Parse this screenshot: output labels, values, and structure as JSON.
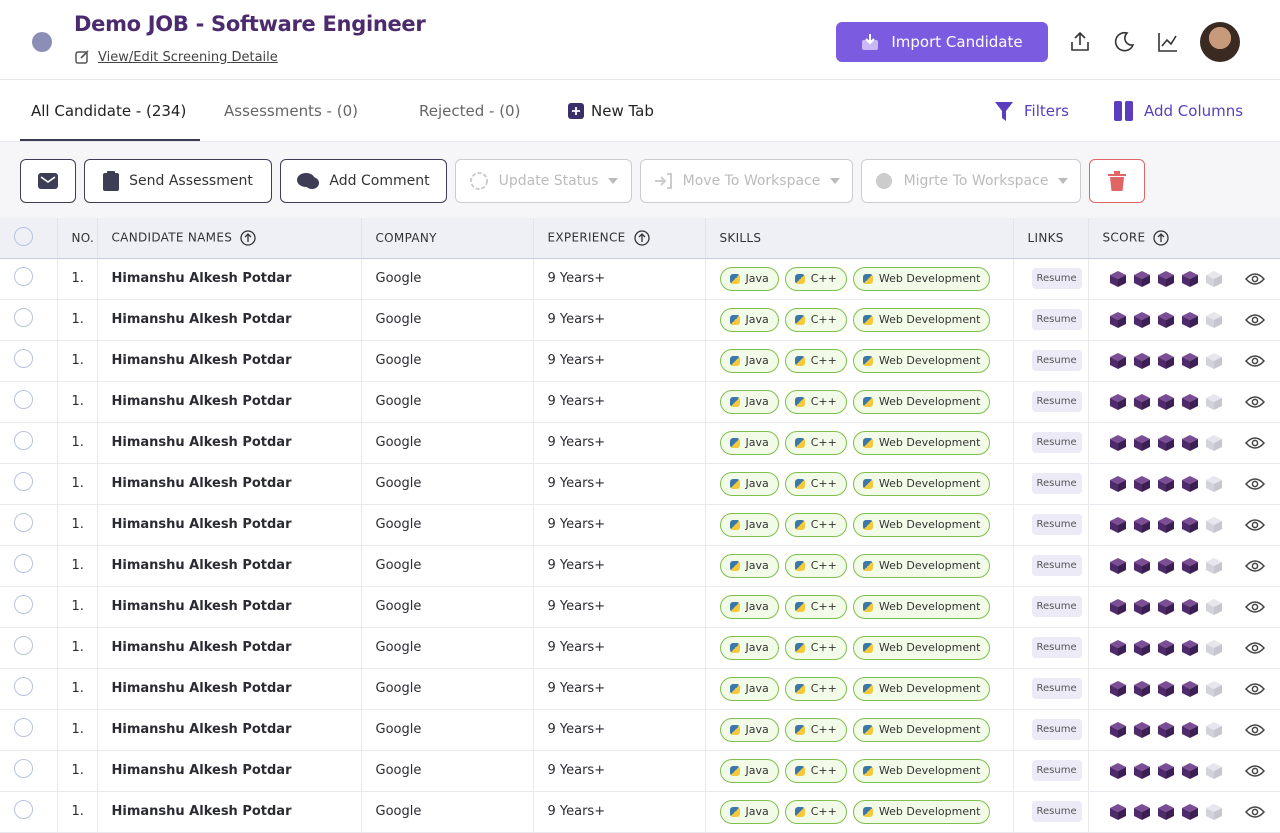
{
  "header": {
    "title": "Demo JOB - Software Engineer",
    "link": "View/Edit Screening Detaile",
    "import_button": "Import Candidate"
  },
  "tabs": [
    "All Candidate - (234)",
    "Assessments - (0)",
    "Rejected - (0)",
    "New Tab"
  ],
  "actions": [
    "Filters",
    "Add Columns"
  ],
  "toolbar": [
    "Send Assessment",
    "Add Comment",
    "Update Status",
    "Move To Workspace",
    "Migrte To Workspace"
  ],
  "table": {
    "columns": [
      "NO.",
      "CANDIDATE NAMES",
      "COMPANY",
      "EXPERIENCE",
      "SKILLS",
      "LINKS",
      "SCORE"
    ],
    "rows": [
      {
        "no": "1.",
        "name": "Himanshu Alkesh Potdar",
        "company": "Google",
        "experience": "9 Years+",
        "skills": [
          "Java",
          "C++",
          "Web Development"
        ],
        "link": "Resume",
        "score": 4
      },
      {
        "no": "1.",
        "name": "Himanshu Alkesh Potdar",
        "company": "Google",
        "experience": "9 Years+",
        "skills": [
          "Java",
          "C++",
          "Web Development"
        ],
        "link": "Resume",
        "score": 4
      },
      {
        "no": "1.",
        "name": "Himanshu Alkesh Potdar",
        "company": "Google",
        "experience": "9 Years+",
        "skills": [
          "Java",
          "C++",
          "Web Development"
        ],
        "link": "Resume",
        "score": 4
      },
      {
        "no": "1.",
        "name": "Himanshu Alkesh Potdar",
        "company": "Google",
        "experience": "9 Years+",
        "skills": [
          "Java",
          "C++",
          "Web Development"
        ],
        "link": "Resume",
        "score": 4
      },
      {
        "no": "1.",
        "name": "Himanshu Alkesh Potdar",
        "company": "Google",
        "experience": "9 Years+",
        "skills": [
          "Java",
          "C++",
          "Web Development"
        ],
        "link": "Resume",
        "score": 4
      },
      {
        "no": "1.",
        "name": "Himanshu Alkesh Potdar",
        "company": "Google",
        "experience": "9 Years+",
        "skills": [
          "Java",
          "C++",
          "Web Development"
        ],
        "link": "Resume",
        "score": 4
      },
      {
        "no": "1.",
        "name": "Himanshu Alkesh Potdar",
        "company": "Google",
        "experience": "9 Years+",
        "skills": [
          "Java",
          "C++",
          "Web Development"
        ],
        "link": "Resume",
        "score": 4
      },
      {
        "no": "1.",
        "name": "Himanshu Alkesh Potdar",
        "company": "Google",
        "experience": "9 Years+",
        "skills": [
          "Java",
          "C++",
          "Web Development"
        ],
        "link": "Resume",
        "score": 4
      },
      {
        "no": "1.",
        "name": "Himanshu Alkesh Potdar",
        "company": "Google",
        "experience": "9 Years+",
        "skills": [
          "Java",
          "C++",
          "Web Development"
        ],
        "link": "Resume",
        "score": 4
      },
      {
        "no": "1.",
        "name": "Himanshu Alkesh Potdar",
        "company": "Google",
        "experience": "9 Years+",
        "skills": [
          "Java",
          "C++",
          "Web Development"
        ],
        "link": "Resume",
        "score": 4
      },
      {
        "no": "1.",
        "name": "Himanshu Alkesh Potdar",
        "company": "Google",
        "experience": "9 Years+",
        "skills": [
          "Java",
          "C++",
          "Web Development"
        ],
        "link": "Resume",
        "score": 4
      },
      {
        "no": "1.",
        "name": "Himanshu Alkesh Potdar",
        "company": "Google",
        "experience": "9 Years+",
        "skills": [
          "Java",
          "C++",
          "Web Development"
        ],
        "link": "Resume",
        "score": 4
      },
      {
        "no": "1.",
        "name": "Himanshu Alkesh Potdar",
        "company": "Google",
        "experience": "9 Years+",
        "skills": [
          "Java",
          "C++",
          "Web Development"
        ],
        "link": "Resume",
        "score": 4
      },
      {
        "no": "1.",
        "name": "Himanshu Alkesh Potdar",
        "company": "Google",
        "experience": "9 Years+",
        "skills": [
          "Java",
          "C++",
          "Web Development"
        ],
        "link": "Resume",
        "score": 4
      }
    ]
  }
}
